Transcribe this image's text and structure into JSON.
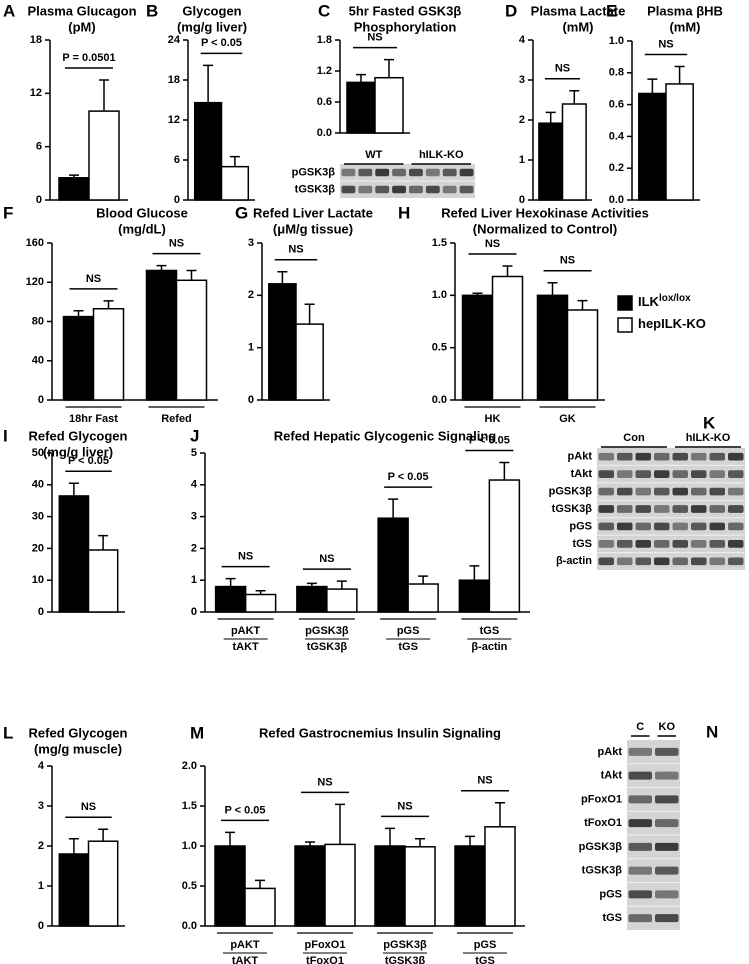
{
  "legend": [
    {
      "name": "ILK",
      "sup": "lox/lox",
      "color": "#000000"
    },
    {
      "name": "hepILK-KO",
      "color": "#ffffff"
    }
  ],
  "chart_data": [
    {
      "type": "bar",
      "panel": "A",
      "title": [
        "Plasma Glucagon",
        "(pM)"
      ],
      "ylim": [
        0,
        18
      ],
      "yticks": [
        0,
        6,
        12,
        18
      ],
      "series": [
        {
          "color": "#000000",
          "values": [
            2.5
          ],
          "errors": [
            0.3
          ]
        },
        {
          "color": "#ffffff",
          "values": [
            10
          ],
          "errors": [
            3.5
          ]
        }
      ],
      "annotations": [
        "P = 0.0501"
      ]
    },
    {
      "type": "bar",
      "panel": "B",
      "title": [
        "Glycogen",
        "(mg/g liver)"
      ],
      "ylim": [
        0,
        24
      ],
      "yticks": [
        0,
        6,
        12,
        18,
        24
      ],
      "series": [
        {
          "color": "#000000",
          "values": [
            14.6
          ],
          "errors": [
            5.6
          ]
        },
        {
          "color": "#ffffff",
          "values": [
            5
          ],
          "errors": [
            1.5
          ]
        }
      ],
      "annotations": [
        "P < 0.05"
      ]
    },
    {
      "type": "bar",
      "panel": "C",
      "title": [
        "5hr Fasted GSK3β",
        "Phosphorylation"
      ],
      "ylim": [
        0,
        1.8
      ],
      "yticks": [
        {
          "value": 0,
          "label": "0.0"
        },
        0.6,
        1.2,
        1.8
      ],
      "series": [
        {
          "color": "#000000",
          "values": [
            0.98
          ],
          "errors": [
            0.15
          ]
        },
        {
          "color": "#ffffff",
          "values": [
            1.07
          ],
          "errors": [
            0.35
          ]
        }
      ],
      "annotations": [
        "NS"
      ]
    },
    {
      "type": "blot",
      "columns": [
        "WT",
        "hILK-KO"
      ],
      "rows": [
        "pGSK3β",
        "tGSK3β"
      ]
    },
    {
      "type": "bar",
      "panel": "D",
      "title": [
        "Plasma Lactate",
        "(mM)"
      ],
      "ylim": [
        0,
        4
      ],
      "yticks": [
        0,
        1,
        2,
        3,
        4
      ],
      "series": [
        {
          "color": "#000000",
          "values": [
            1.92
          ],
          "errors": [
            0.27
          ]
        },
        {
          "color": "#ffffff",
          "values": [
            2.4
          ],
          "errors": [
            0.33
          ]
        }
      ],
      "annotations": [
        "NS"
      ]
    },
    {
      "type": "bar",
      "panel": "E",
      "title": [
        "Plasma βHB",
        "(mM)"
      ],
      "ylim": [
        0,
        1
      ],
      "yticks": [
        {
          "value": 0,
          "label": "0.0"
        },
        0.2,
        0.4,
        0.6,
        0.8,
        {
          "value": 1,
          "label": "1.0"
        }
      ],
      "series": [
        {
          "color": "#000000",
          "values": [
            0.67
          ],
          "errors": [
            0.09
          ]
        },
        {
          "color": "#ffffff",
          "values": [
            0.73
          ],
          "errors": [
            0.11
          ]
        }
      ],
      "annotations": [
        "NS"
      ]
    },
    {
      "type": "bar",
      "panel": "F",
      "title": [
        "Blood Glucose",
        "(mg/dL)"
      ],
      "ylim": [
        0,
        160
      ],
      "yticks": [
        0,
        40,
        80,
        120,
        160
      ],
      "categories": [
        "18hr Fast",
        "Refed"
      ],
      "series": [
        {
          "color": "#000000",
          "values": [
            85,
            132
          ],
          "errors": [
            6,
            5
          ]
        },
        {
          "color": "#ffffff",
          "values": [
            93,
            122
          ],
          "errors": [
            8,
            10
          ]
        }
      ],
      "annotations": [
        "NS",
        "NS"
      ]
    },
    {
      "type": "bar",
      "panel": "G",
      "title": [
        "Refed Liver Lactate",
        "(μM/g tissue)"
      ],
      "ylim": [
        0,
        3
      ],
      "yticks": [
        0,
        1,
        2,
        3
      ],
      "series": [
        {
          "color": "#000000",
          "values": [
            2.22
          ],
          "errors": [
            0.23
          ]
        },
        {
          "color": "#ffffff",
          "values": [
            1.45
          ],
          "errors": [
            0.38
          ]
        }
      ],
      "annotations": [
        "NS"
      ]
    },
    {
      "type": "bar",
      "panel": "H",
      "title": [
        "Refed Liver Hexokinase Activities",
        "(Normalized to Control)"
      ],
      "ylim": [
        0,
        1.5
      ],
      "yticks": [
        {
          "value": 0,
          "label": "0.0"
        },
        0.5,
        {
          "value": 1,
          "label": "1.0"
        },
        1.5
      ],
      "categories": [
        "HK",
        "GK"
      ],
      "series": [
        {
          "color": "#000000",
          "values": [
            1.0,
            1.0
          ],
          "errors": [
            0.02,
            0.12
          ]
        },
        {
          "color": "#ffffff",
          "values": [
            1.18,
            0.86
          ],
          "errors": [
            0.1,
            0.09
          ]
        }
      ],
      "annotations": [
        "NS",
        "NS"
      ]
    },
    {
      "type": "bar",
      "panel": "I",
      "title": [
        "Refed Glycogen",
        "(mg/g liver)"
      ],
      "ylim": [
        0,
        50
      ],
      "yticks": [
        0,
        10,
        20,
        30,
        40,
        50
      ],
      "series": [
        {
          "color": "#000000",
          "values": [
            36.5
          ],
          "errors": [
            4
          ]
        },
        {
          "color": "#ffffff",
          "values": [
            19.5
          ],
          "errors": [
            4.5
          ]
        }
      ],
      "annotations": [
        "P < 0.05"
      ]
    },
    {
      "type": "bar",
      "panel": "J",
      "title": [
        "Refed Hepatic Glycogenic Signaling"
      ],
      "ylim": [
        0,
        5
      ],
      "yticks": [
        0,
        1,
        2,
        3,
        4,
        5
      ],
      "categories": [
        {
          "num": "pAKT",
          "den": "tAKT"
        },
        {
          "num": "pGSK3β",
          "den": "tGSK3β"
        },
        {
          "num": "pGS",
          "den": "tGS"
        },
        {
          "num": "tGS",
          "den": "β-actin"
        }
      ],
      "series": [
        {
          "color": "#000000",
          "values": [
            0.8,
            0.8,
            2.95,
            1.0
          ],
          "errors": [
            0.25,
            0.1,
            0.6,
            0.45
          ]
        },
        {
          "color": "#ffffff",
          "values": [
            0.55,
            0.72,
            0.88,
            4.15
          ],
          "errors": [
            0.12,
            0.25,
            0.25,
            0.55
          ]
        }
      ],
      "annotations": [
        "NS",
        "NS",
        "P < 0.05",
        "P < 0.05"
      ]
    },
    {
      "type": "blot",
      "panel": "K",
      "columns": [
        "Con",
        "hILK-KO"
      ],
      "rows": [
        "pAkt",
        "tAkt",
        "pGSK3β",
        "tGSK3β",
        "pGS",
        "tGS",
        "β-actin"
      ]
    },
    {
      "type": "bar",
      "panel": "L",
      "title": [
        "Refed Glycogen",
        "(mg/g muscle)"
      ],
      "ylim": [
        0,
        4
      ],
      "yticks": [
        0,
        1,
        2,
        3,
        4
      ],
      "series": [
        {
          "color": "#000000",
          "values": [
            1.8
          ],
          "errors": [
            0.38
          ]
        },
        {
          "color": "#ffffff",
          "values": [
            2.12
          ],
          "errors": [
            0.3
          ]
        }
      ],
      "annotations": [
        "NS"
      ]
    },
    {
      "type": "bar",
      "panel": "M",
      "title": [
        "Refed Gastrocnemius Insulin Signaling"
      ],
      "ylim": [
        0,
        2
      ],
      "yticks": [
        {
          "value": 0,
          "label": "0.0"
        },
        0.5,
        {
          "value": 1,
          "label": "1.0"
        },
        1.5,
        {
          "value": 2,
          "label": "2.0"
        }
      ],
      "categories": [
        {
          "num": "pAKT",
          "den": "tAKT"
        },
        {
          "num": "pFoxO1",
          "den": "tFoxO1"
        },
        {
          "num": "pGSK3β",
          "den": "tGSK3β"
        },
        {
          "num": "pGS",
          "den": "tGS"
        }
      ],
      "series": [
        {
          "color": "#000000",
          "values": [
            1.0,
            1.0,
            1.0,
            1.0
          ],
          "errors": [
            0.17,
            0.05,
            0.22,
            0.12
          ]
        },
        {
          "color": "#ffffff",
          "values": [
            0.47,
            1.02,
            0.99,
            1.24
          ],
          "errors": [
            0.1,
            0.5,
            0.1,
            0.3
          ]
        }
      ],
      "annotations": [
        "P < 0.05",
        "NS",
        "NS",
        "NS"
      ]
    },
    {
      "type": "blot",
      "panel": "N",
      "columns": [
        "C",
        "KO"
      ],
      "rows": [
        "pAkt",
        "tAkt",
        "pFoxO1",
        "tFoxO1",
        "pGSK3β",
        "tGSK3β",
        "pGS",
        "tGS"
      ]
    }
  ]
}
